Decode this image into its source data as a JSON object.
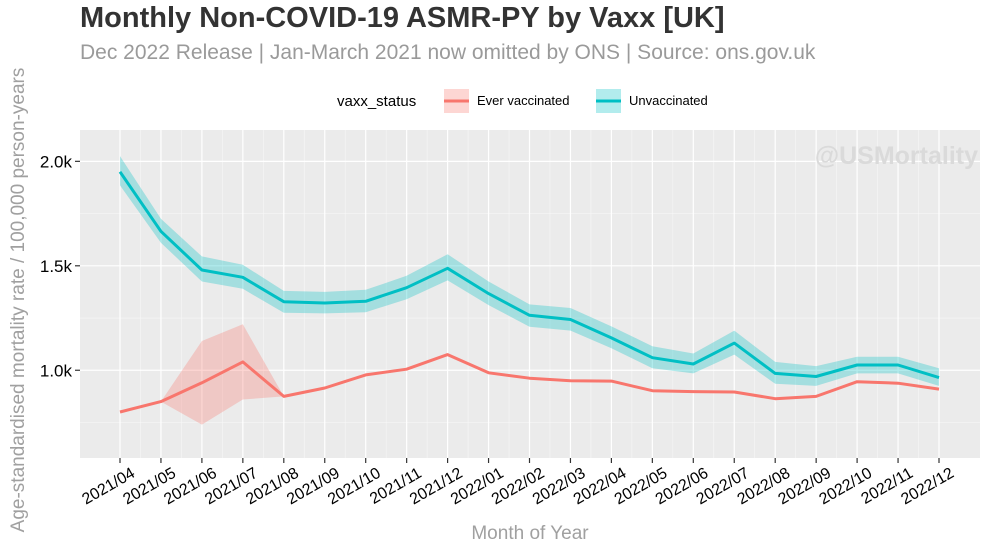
{
  "chart_data": {
    "type": "line",
    "title": "Monthly Non-COVID-19 ASMR-PY by Vaxx [UK]",
    "subtitle": "Dec 2022 Release | Jan-March 2021 now omitted by ONS | Source: ons.gov.uk",
    "xlabel": "Month of Year",
    "ylabel": "Age-standardised mortality rate / 100,000 person-years",
    "watermark": "@USMortality",
    "legend": {
      "title": "vaxx_status",
      "position": "top"
    },
    "categories": [
      "2021/04",
      "2021/05",
      "2021/06",
      "2021/07",
      "2021/08",
      "2021/09",
      "2021/10",
      "2021/11",
      "2021/12",
      "2022/01",
      "2022/02",
      "2022/03",
      "2022/04",
      "2022/05",
      "2022/06",
      "2022/07",
      "2022/08",
      "2022/09",
      "2022/10",
      "2022/11",
      "2022/12"
    ],
    "ylim": [
      580,
      2150
    ],
    "yticks": [
      1000,
      1500,
      2000
    ],
    "ytick_labels": [
      "1.0k",
      "1.5k",
      "2.0k"
    ],
    "grid": true,
    "series": [
      {
        "name": "Ever vaccinated",
        "color": "#f8766d",
        "values": [
          800,
          850,
          940,
          1040,
          875,
          915,
          978,
          1005,
          1075,
          988,
          962,
          950,
          948,
          902,
          898,
          896,
          864,
          875,
          945,
          938,
          910
        ],
        "lower": [
          800,
          850,
          740,
          860,
          875,
          915,
          978,
          1005,
          1075,
          988,
          962,
          950,
          948,
          902,
          898,
          896,
          864,
          875,
          945,
          938,
          910
        ],
        "upper": [
          800,
          850,
          1140,
          1220,
          875,
          915,
          978,
          1005,
          1075,
          988,
          962,
          950,
          948,
          902,
          898,
          896,
          864,
          875,
          945,
          938,
          910
        ]
      },
      {
        "name": "Unvaccinated",
        "color": "#00bfc4",
        "values": [
          1950,
          1665,
          1480,
          1445,
          1328,
          1322,
          1330,
          1395,
          1488,
          1367,
          1263,
          1243,
          1155,
          1060,
          1030,
          1130,
          985,
          970,
          1025,
          1025,
          965
        ],
        "lower": [
          1885,
          1610,
          1425,
          1390,
          1275,
          1272,
          1278,
          1340,
          1430,
          1312,
          1208,
          1190,
          1105,
          1010,
          985,
          1075,
          935,
          925,
          985,
          985,
          925
        ],
        "upper": [
          2025,
          1725,
          1545,
          1505,
          1380,
          1375,
          1385,
          1452,
          1555,
          1425,
          1315,
          1298,
          1210,
          1115,
          1080,
          1190,
          1040,
          1020,
          1065,
          1065,
          1010
        ]
      }
    ]
  }
}
